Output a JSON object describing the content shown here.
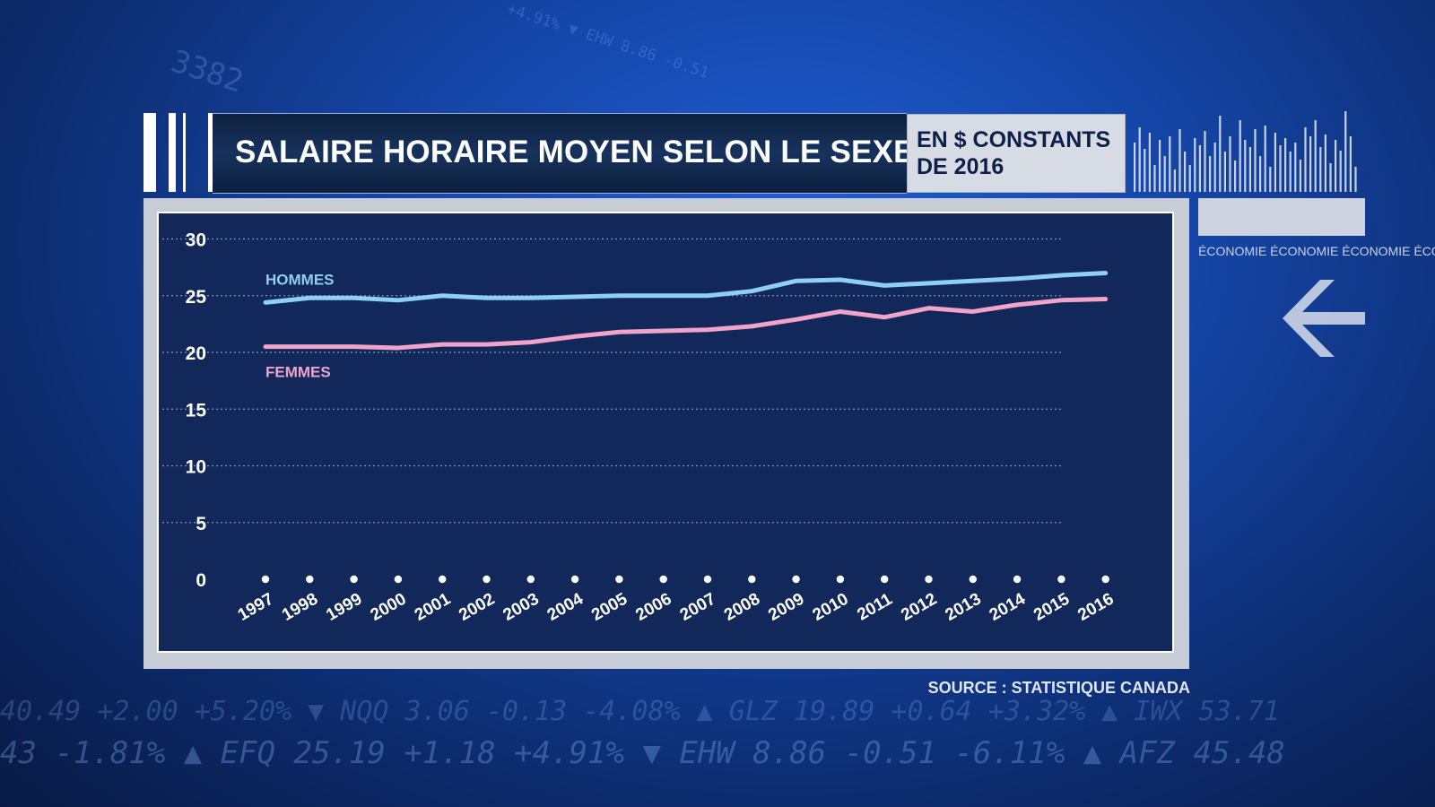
{
  "header": {
    "title": "SALAIRE HORAIRE MOYEN SELON LE SEXE",
    "unit_line1": "EN $ CONSTANTS",
    "unit_line2": "DE 2016"
  },
  "side": {
    "label": "ÉCONOMIE ÉCONOMIE ÉCONOMIE ÉCONO"
  },
  "ticker": {
    "line1": "40.49 +2.00 +5.20% ▼ NQQ 3.06 -0.13 -4.08% ▲ GLZ 19.89 +0.64 +3.32% ▲ IWX 53.71",
    "line2": "43 -1.81% ▲ EFQ 25.19 +1.18 +4.91% ▼ EHW 8.86 -0.51 -6.11% ▲ AFZ 45.48"
  },
  "background": {
    "num1": "3382",
    "num2": "+4.91% ▼ EHW 8.86 -0.51"
  },
  "source": "SOURCE : STATISTIQUE CANADA",
  "colors": {
    "men": "#8ed0f5",
    "women": "#f2a3c9",
    "panel": "#12275a"
  },
  "chart_data": {
    "type": "line",
    "title": "SALAIRE HORAIRE MOYEN SELON LE SEXE",
    "subtitle": "EN $ CONSTANTS DE 2016",
    "xlabel": "",
    "ylabel": "",
    "ylim": [
      0,
      30
    ],
    "yticks": [
      0,
      5,
      10,
      15,
      20,
      25,
      30
    ],
    "grid": true,
    "categories": [
      "1997",
      "1998",
      "1999",
      "2000",
      "2001",
      "2002",
      "2003",
      "2004",
      "2005",
      "2006",
      "2007",
      "2008",
      "2009",
      "2010",
      "2011",
      "2012",
      "2013",
      "2014",
      "2015",
      "2016"
    ],
    "series": [
      {
        "name": "HOMMES",
        "color": "#8ed0f5",
        "values": [
          24.4,
          24.8,
          24.8,
          24.6,
          25.0,
          24.8,
          24.8,
          24.9,
          25.0,
          25.0,
          25.0,
          25.4,
          26.3,
          26.4,
          25.9,
          26.1,
          26.3,
          26.5,
          26.8,
          27.0
        ]
      },
      {
        "name": "FEMMES",
        "color": "#f2a3c9",
        "values": [
          20.5,
          20.5,
          20.5,
          20.4,
          20.7,
          20.7,
          20.9,
          21.4,
          21.8,
          21.9,
          22.0,
          22.3,
          22.9,
          23.6,
          23.1,
          23.9,
          23.6,
          24.2,
          24.6,
          24.7
        ]
      }
    ],
    "source": "SOURCE : STATISTIQUE CANADA"
  }
}
